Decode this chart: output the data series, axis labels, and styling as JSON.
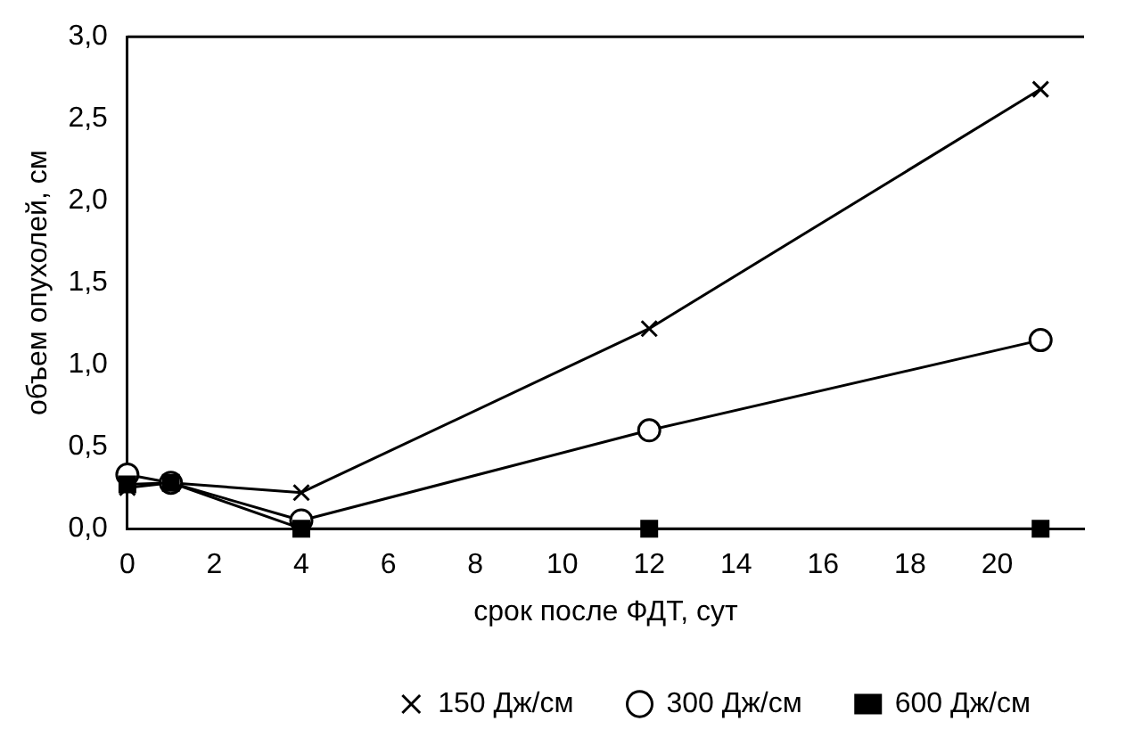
{
  "chart_data": {
    "type": "line",
    "xlabel": "срок после ФДТ, сут",
    "ylabel": "объем опухолей, см",
    "x": [
      0,
      1,
      4,
      12,
      21
    ],
    "xlim": [
      0,
      22
    ],
    "xticks": [
      0,
      2,
      4,
      6,
      8,
      10,
      12,
      14,
      16,
      18,
      20
    ],
    "ylim": [
      0,
      3
    ],
    "yticks": [
      {
        "value": 0,
        "label": "0,0"
      },
      {
        "value": 0.5,
        "label": "0,5"
      },
      {
        "value": 1,
        "label": "1,0"
      },
      {
        "value": 1.5,
        "label": "1,5"
      },
      {
        "value": 2,
        "label": "2,0"
      },
      {
        "value": 2.5,
        "label": "2,5"
      },
      {
        "value": 3,
        "label": "3,0"
      }
    ],
    "grid": false,
    "legend": "bottom",
    "line_style": "solid",
    "series": [
      {
        "name": "150 Дж/см",
        "color": "#000000",
        "marker": "cross",
        "values": [
          0.25,
          0.28,
          0.22,
          1.22,
          2.68
        ]
      },
      {
        "name": "300 Дж/см",
        "color": "#000000",
        "marker": "circle",
        "values": [
          0.33,
          0.28,
          0.05,
          0.6,
          1.15
        ]
      },
      {
        "name": "600 Дж/см",
        "color": "#000000",
        "marker": "square",
        "values": [
          0.27,
          0.28,
          0,
          0,
          0
        ]
      }
    ]
  }
}
